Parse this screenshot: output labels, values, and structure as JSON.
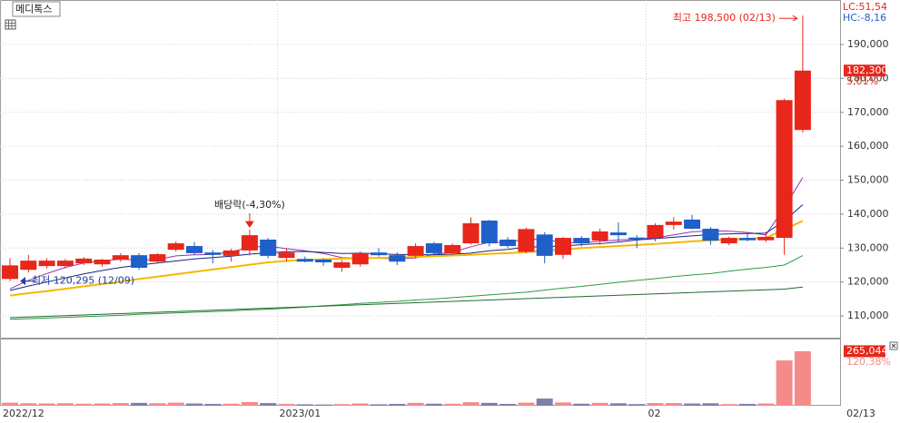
{
  "chart_data": {
    "type": "candlestick",
    "title": "메디톡스",
    "indicators": [
      "LC:51,54",
      "HC:-8,16"
    ],
    "categories": [
      "2022/12",
      null,
      null,
      null,
      null,
      null,
      null,
      null,
      null,
      null,
      null,
      null,
      null,
      null,
      null,
      "2023/01",
      null,
      null,
      null,
      null,
      null,
      null,
      null,
      null,
      null,
      null,
      null,
      null,
      null,
      null,
      null,
      null,
      null,
      null,
      null,
      "02",
      null,
      null,
      null,
      null,
      null,
      null,
      null,
      null
    ],
    "last_date": "02/13",
    "up_color": "#e8261a",
    "down_color": "#1f5fc8",
    "open": [
      120900,
      123600,
      124700,
      124700,
      125500,
      125200,
      126600,
      127900,
      126000,
      129500,
      130600,
      128700,
      127700,
      129300,
      132500,
      127100,
      126800,
      126600,
      124200,
      125200,
      128700,
      127900,
      127700,
      131400,
      128500,
      131400,
      138100,
      132500,
      128900,
      134000,
      128000,
      133000,
      132200,
      134600,
      133100,
      133000,
      136800,
      138400,
      135700,
      131400,
      133000,
      132300,
      133000,
      164800
    ],
    "high": [
      127000,
      128000,
      127000,
      126800,
      127400,
      126800,
      128500,
      128500,
      128500,
      132000,
      131800,
      129500,
      129800,
      135400,
      133000,
      130000,
      127500,
      127000,
      126500,
      129000,
      130000,
      128800,
      131400,
      131800,
      131300,
      139000,
      138300,
      133200,
      136000,
      134700,
      133300,
      133500,
      135700,
      137600,
      133800,
      137300,
      139100,
      139800,
      136200,
      133400,
      134600,
      134800,
      174000,
      198500
    ],
    "low": [
      120295,
      122800,
      124000,
      124000,
      125000,
      124500,
      126000,
      123600,
      125500,
      129000,
      128000,
      125500,
      126000,
      127800,
      127000,
      126000,
      125800,
      124800,
      123000,
      124500,
      127500,
      125000,
      127000,
      128000,
      128000,
      131000,
      130500,
      130000,
      128500,
      125500,
      126800,
      130500,
      131000,
      132000,
      130000,
      132000,
      135500,
      135500,
      131000,
      130800,
      132000,
      131800,
      128000,
      164000
    ],
    "close": [
      124900,
      126300,
      126300,
      126300,
      126900,
      126600,
      127900,
      124200,
      128200,
      131400,
      128500,
      128000,
      129300,
      133800,
      127700,
      128700,
      126000,
      125800,
      125800,
      128500,
      127900,
      126000,
      130600,
      128500,
      130900,
      137300,
      131400,
      130600,
      135600,
      127700,
      133000,
      131400,
      134900,
      133800,
      132500,
      136800,
      137800,
      135700,
      132200,
      133000,
      132300,
      133300,
      173600,
      182300
    ],
    "moving_averages": [
      {
        "color": "#9b2fae",
        "values": [
          118000,
          120500,
          122500,
          124300,
          125600,
          126300,
          126700,
          126500,
          126600,
          127700,
          128000,
          128100,
          128900,
          130200,
          130600,
          129800,
          129200,
          128400,
          127200,
          127000,
          127000,
          126800,
          127100,
          128200,
          128700,
          130400,
          131700,
          131700,
          132700,
          132500,
          131700,
          131500,
          132000,
          132400,
          132700,
          133000,
          133900,
          134800,
          135100,
          135000,
          134600,
          133900,
          141900,
          150800
        ]
      },
      {
        "color": "#1a237e",
        "values": [
          117500,
          118800,
          120000,
          121200,
          122400,
          123400,
          124300,
          125000,
          125600,
          126200,
          126800,
          127200,
          127600,
          128200,
          128600,
          128900,
          129000,
          128700,
          128400,
          128500,
          128300,
          128100,
          128100,
          128000,
          128200,
          128500,
          129200,
          129600,
          130300,
          130400,
          130600,
          131000,
          131300,
          131800,
          132400,
          132800,
          133200,
          133600,
          134000,
          134200,
          134300,
          134400,
          138000,
          142800
        ]
      },
      {
        "color": "#f5b800",
        "values": [
          116000,
          116700,
          117300,
          118000,
          118700,
          119400,
          120100,
          120900,
          121600,
          122300,
          123000,
          123700,
          124400,
          125100,
          125800,
          126200,
          126500,
          126700,
          126900,
          127000,
          127100,
          127200,
          127400,
          127600,
          127800,
          128000,
          128300,
          128500,
          128800,
          129200,
          129600,
          130000,
          130300,
          130600,
          130900,
          131200,
          131600,
          132000,
          132300,
          132500,
          132700,
          133000,
          135500,
          138000
        ]
      },
      {
        "color": "#2e9a3e",
        "values": [
          109000,
          109200,
          109400,
          109600,
          109800,
          110000,
          110200,
          110500,
          110700,
          110900,
          111100,
          111300,
          111500,
          111800,
          112000,
          112300,
          112600,
          113000,
          113300,
          113700,
          114000,
          114300,
          114700,
          115000,
          115400,
          115800,
          116200,
          116600,
          117000,
          117600,
          118200,
          118700,
          119300,
          119900,
          120500,
          121000,
          121600,
          122100,
          122500,
          123200,
          123800,
          124300,
          125000,
          127800
        ]
      },
      {
        "color": "#1f6b32",
        "values": [
          109500,
          109700,
          109900,
          110100,
          110300,
          110500,
          110700,
          110900,
          111100,
          111300,
          111500,
          111700,
          111900,
          112100,
          112300,
          112500,
          112700,
          112900,
          113100,
          113300,
          113500,
          113700,
          113900,
          114100,
          114300,
          114500,
          114700,
          114900,
          115100,
          115300,
          115500,
          115700,
          115900,
          116100,
          116300,
          116500,
          116700,
          116900,
          117100,
          117300,
          117500,
          117700,
          117900,
          118500
        ]
      }
    ],
    "ylim": [
      103600,
      203100
    ],
    "yticks": [
      {
        "value": 110000,
        "label": "110,000"
      },
      {
        "value": 120000,
        "label": "120,000"
      },
      {
        "value": 130000,
        "label": "130,000"
      },
      {
        "value": 140000,
        "label": "140,000"
      },
      {
        "value": 150000,
        "label": "150,000"
      },
      {
        "value": 160000,
        "label": "160,000"
      },
      {
        "value": 170000,
        "label": "170,000"
      },
      {
        "value": 180000,
        "label": "180,000"
      },
      {
        "value": 190000,
        "label": "190,000"
      }
    ],
    "current_price": {
      "value": 182300,
      "label": "182,300"
    },
    "change_label": "5,01%",
    "annotations": [
      "최고 198,500 (02/13)",
      "최저 120,295 (12/09)",
      "배당락(-4,30%)"
    ],
    "volume": {
      "values": [
        15000,
        12000,
        11000,
        12000,
        10000,
        11000,
        13000,
        14000,
        12000,
        15000,
        11000,
        9000,
        10000,
        18000,
        13000,
        9000,
        7000,
        6000,
        8000,
        11000,
        7000,
        9000,
        14000,
        10000,
        10000,
        17000,
        14000,
        9000,
        15000,
        35000,
        16000,
        10000,
        14000,
        12000,
        8000,
        13000,
        13000,
        11000,
        12000,
        8000,
        9000,
        11000,
        220200,
        265044
      ],
      "up_color": "#f58a8a",
      "down_color": "#7d7fae",
      "ylim": [
        0,
        322000
      ],
      "current": {
        "value": 265044,
        "label": "265,044"
      },
      "ratio_label": "120,38%"
    }
  }
}
